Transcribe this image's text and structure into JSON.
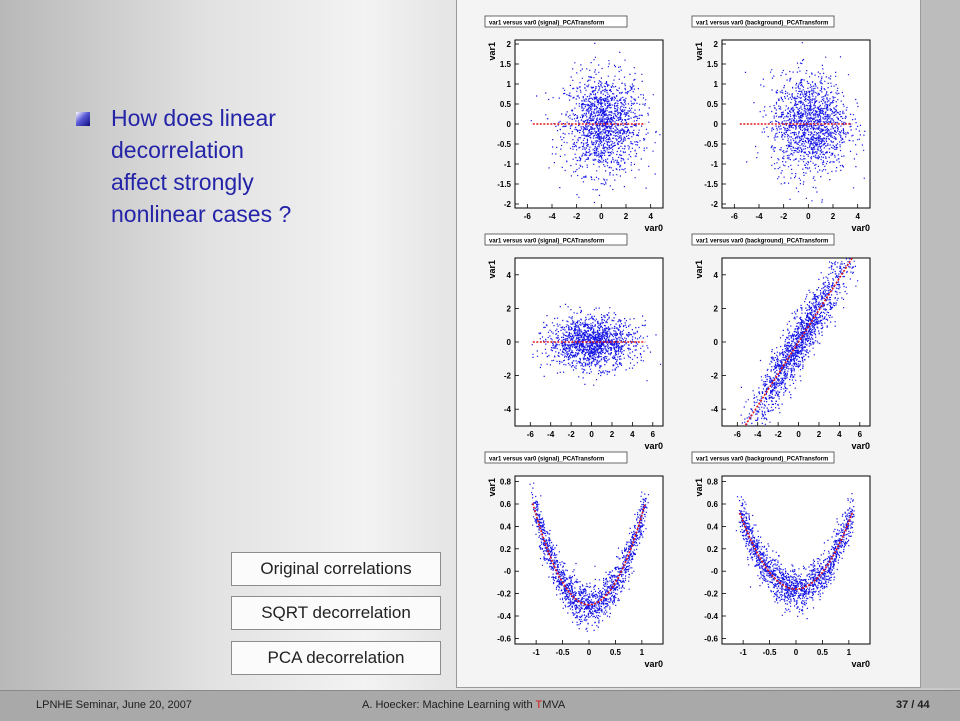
{
  "slide": {
    "question_lines": [
      "How does linear",
      "decorrelation",
      "affect strongly",
      "nonlinear cases ?"
    ]
  },
  "legend": {
    "original": "Original correlations",
    "sqrt": "SQRT decorrelation",
    "pca": "PCA decorrelation"
  },
  "footer": {
    "left": "LPNHE Seminar, June 20, 2007",
    "center_prefix": "A. Hoecker: Machine Learning with ",
    "center_t": "T",
    "center_suffix": "MVA",
    "page": "37 / 44"
  },
  "colors": {
    "question_text": "#2424a8",
    "scatter": "#1414e6",
    "profile": "#e01818",
    "accent_t": "#d21a1a"
  },
  "chart_data": [
    {
      "type": "scatter",
      "title": "var1 versus var0 (signal)_PCATransform",
      "xlabel": "var0",
      "ylabel": "var1",
      "xticks": [
        "-6",
        "-4",
        "-2",
        "0",
        "2",
        "4"
      ],
      "yticks": [
        "2",
        "1.5",
        "1",
        "0.5",
        "0",
        "-0.5",
        "-1",
        "-1.5",
        "-2"
      ],
      "xlim": [
        -7,
        5
      ],
      "ylim": [
        -2.1,
        2.1
      ],
      "shape": "blob",
      "profile": "flat"
    },
    {
      "type": "scatter",
      "title": "var1 versus var0 (background)_PCATransform",
      "xlabel": "var0",
      "ylabel": "var1",
      "xticks": [
        "-6",
        "-4",
        "-2",
        "0",
        "2",
        "4"
      ],
      "yticks": [
        "2",
        "1.5",
        "1",
        "0.5",
        "0",
        "-0.5",
        "-1",
        "-1.5",
        "-2"
      ],
      "xlim": [
        -7,
        5
      ],
      "ylim": [
        -2.1,
        2.1
      ],
      "shape": "blob",
      "profile": "flat"
    },
    {
      "type": "scatter",
      "title": "var1 versus var0 (signal)_PCATransform",
      "xlabel": "var0",
      "ylabel": "var1",
      "xticks": [
        "-6",
        "-4",
        "-2",
        "0",
        "2",
        "4",
        "6"
      ],
      "yticks": [
        "4",
        "2",
        "0",
        "-2",
        "-4"
      ],
      "xlim": [
        -7.5,
        7
      ],
      "ylim": [
        -5,
        5
      ],
      "shape": "ellipse",
      "profile": "flat"
    },
    {
      "type": "scatter",
      "title": "var1 versus var0 (background)_PCATransform",
      "xlabel": "var0",
      "ylabel": "var1",
      "xticks": [
        "-6",
        "-4",
        "-2",
        "0",
        "2",
        "4",
        "6"
      ],
      "yticks": [
        "4",
        "2",
        "0",
        "-2",
        "-4"
      ],
      "xlim": [
        -7.5,
        7
      ],
      "ylim": [
        -5,
        5
      ],
      "shape": "diagonal",
      "profile": "linear"
    },
    {
      "type": "scatter",
      "title": "var1 versus var0 (signal)_PCATransform",
      "xlabel": "var0",
      "ylabel": "var1",
      "xticks": [
        "-1",
        "-0.5",
        "0",
        "0.5",
        "1"
      ],
      "yticks": [
        "0.8",
        "0.6",
        "0.4",
        "0.2",
        "-0",
        "-0.2",
        "-0.4",
        "-0.6"
      ],
      "xlim": [
        -1.4,
        1.4
      ],
      "ylim": [
        -0.65,
        0.85
      ],
      "shape": "parabola",
      "profile": "parabola"
    },
    {
      "type": "scatter",
      "title": "var1 versus var0 (background)_PCATransform",
      "xlabel": "var0",
      "ylabel": "var1",
      "xticks": [
        "-1",
        "-0.5",
        "0",
        "0.5",
        "1"
      ],
      "yticks": [
        "0.8",
        "0.6",
        "0.4",
        "0.2",
        "-0",
        "-0.2",
        "-0.4",
        "-0.6"
      ],
      "xlim": [
        -1.4,
        1.4
      ],
      "ylim": [
        -0.65,
        0.85
      ],
      "shape": "parabola-bg",
      "profile": "parabola"
    }
  ]
}
